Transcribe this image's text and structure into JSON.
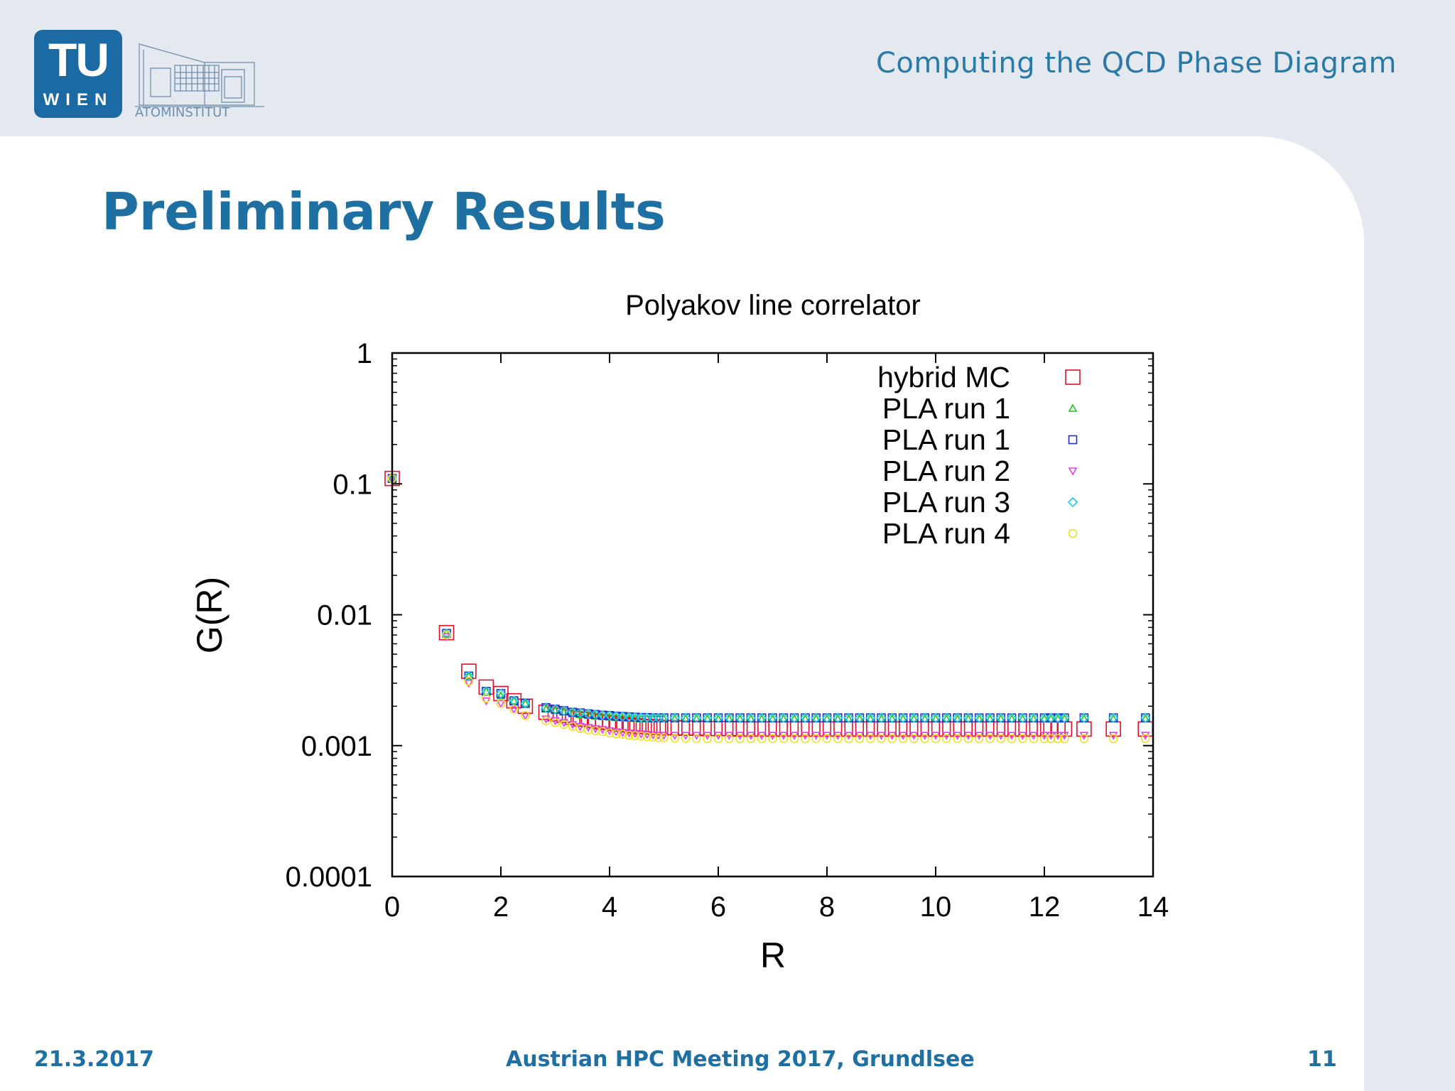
{
  "header": {
    "logo_primary": "TU",
    "logo_secondary": "WIEN",
    "logo_institute": "ATOMINSTITUT",
    "deck_title": "Computing the QCD Phase Diagram"
  },
  "slide": {
    "title": "Preliminary Results"
  },
  "footer": {
    "date": "21.3.2017",
    "event": "Austrian HPC Meeting 2017, Grundlsee",
    "page": "11"
  },
  "colors": {
    "header_bg": "#e3e9ee",
    "accent": "#1e6fa2",
    "deck_title": "#2a7aa8"
  },
  "chart_data": {
    "type": "scatter",
    "title": "Polyakov line correlator",
    "xlabel": "R",
    "ylabel": "G(R)",
    "xlim": [
      0,
      14
    ],
    "ylim": [
      0.0001,
      1
    ],
    "yscale": "log",
    "x_ticks": [
      0,
      2,
      4,
      6,
      8,
      10,
      12,
      14
    ],
    "y_ticks": [
      {
        "value": 0.0001,
        "label": "0.0001"
      },
      {
        "value": 0.001,
        "label": "0.001"
      },
      {
        "value": 0.01,
        "label": "0.01"
      },
      {
        "value": 0.1,
        "label": "0.1"
      },
      {
        "value": 1,
        "label": "1"
      }
    ],
    "legend_position": "top-right",
    "x": [
      0,
      1,
      1.41,
      1.73,
      2,
      2.24,
      2.45,
      2.83,
      3,
      3.16,
      3.32,
      3.46,
      3.61,
      3.74,
      3.87,
      4,
      4.12,
      4.24,
      4.36,
      4.47,
      4.58,
      4.69,
      4.8,
      4.9,
      5,
      5.2,
      5.4,
      5.6,
      5.8,
      6,
      6.2,
      6.4,
      6.6,
      6.8,
      7,
      7.2,
      7.4,
      7.6,
      7.8,
      8,
      8.2,
      8.4,
      8.6,
      8.8,
      9,
      9.2,
      9.4,
      9.6,
      9.8,
      10,
      10.2,
      10.4,
      10.6,
      10.8,
      11,
      11.2,
      11.4,
      11.6,
      11.8,
      12,
      12.12,
      12.25,
      12.37,
      12.73,
      13.27,
      13.86
    ],
    "series": [
      {
        "name": "hybrid MC",
        "marker": "square",
        "color": "#e0102a",
        "size": 1.0,
        "values": [
          0.11,
          0.0073,
          0.0037,
          0.0028,
          0.0025,
          0.0022,
          0.002,
          0.0018,
          0.00175,
          0.0017,
          0.00165,
          0.0016,
          0.00158,
          0.00155,
          0.00152,
          0.0015,
          0.00148,
          0.00146,
          0.00144,
          0.00142,
          0.0014,
          0.0014,
          0.00139,
          0.00138,
          0.00137,
          0.00137,
          0.00136,
          0.00136,
          0.00135,
          0.00135,
          0.00135,
          0.00134,
          0.00134,
          0.00134,
          0.00134,
          0.00134,
          0.00134,
          0.00134,
          0.00134,
          0.00134,
          0.00134,
          0.00134,
          0.00134,
          0.00134,
          0.00134,
          0.00134,
          0.00134,
          0.00134,
          0.00134,
          0.00134,
          0.00134,
          0.00134,
          0.00134,
          0.00134,
          0.00134,
          0.00134,
          0.00134,
          0.00134,
          0.00134,
          0.00134,
          0.00134,
          0.00134,
          0.00134,
          0.00134,
          0.00134,
          0.00134
        ]
      },
      {
        "name": "PLA run 1",
        "marker": "triangle-up",
        "color": "#22c422",
        "size": 0.5,
        "values": [
          0.11,
          0.0072,
          0.0034,
          0.0026,
          0.0024,
          0.0022,
          0.0021,
          0.0019,
          0.00185,
          0.0018,
          0.00175,
          0.00172,
          0.0017,
          0.00168,
          0.00166,
          0.00165,
          0.00164,
          0.00163,
          0.00162,
          0.00161,
          0.0016,
          0.0016,
          0.0016,
          0.0016,
          0.0016,
          0.0016,
          0.0016,
          0.0016,
          0.0016,
          0.0016,
          0.0016,
          0.0016,
          0.0016,
          0.0016,
          0.0016,
          0.0016,
          0.0016,
          0.0016,
          0.0016,
          0.0016,
          0.0016,
          0.0016,
          0.0016,
          0.0016,
          0.0016,
          0.0016,
          0.0016,
          0.0016,
          0.0016,
          0.0016,
          0.0016,
          0.0016,
          0.0016,
          0.0016,
          0.0016,
          0.0016,
          0.0016,
          0.0016,
          0.0016,
          0.0016,
          0.0016,
          0.0016,
          0.0016,
          0.0016,
          0.0016,
          0.0016
        ]
      },
      {
        "name": "PLA run 1",
        "marker": "square",
        "color": "#2030c8",
        "size": 0.55,
        "values": [
          0.11,
          0.0072,
          0.0034,
          0.0026,
          0.0025,
          0.0022,
          0.0021,
          0.00195,
          0.0019,
          0.00185,
          0.0018,
          0.00178,
          0.00175,
          0.00173,
          0.00171,
          0.0017,
          0.00168,
          0.00167,
          0.00166,
          0.00165,
          0.00164,
          0.00164,
          0.00163,
          0.00163,
          0.00163,
          0.00163,
          0.00163,
          0.00163,
          0.00163,
          0.00163,
          0.00163,
          0.00163,
          0.00163,
          0.00163,
          0.00163,
          0.00163,
          0.00163,
          0.00163,
          0.00163,
          0.00163,
          0.00163,
          0.00163,
          0.00163,
          0.00163,
          0.00163,
          0.00163,
          0.00163,
          0.00163,
          0.00163,
          0.00163,
          0.00163,
          0.00163,
          0.00163,
          0.00163,
          0.00163,
          0.00163,
          0.00163,
          0.00163,
          0.00163,
          0.00163,
          0.00163,
          0.00163,
          0.00163,
          0.00163,
          0.00163,
          0.00163
        ]
      },
      {
        "name": "PLA run 2",
        "marker": "triangle-down",
        "color": "#e040e0",
        "size": 0.5,
        "values": [
          0.11,
          0.0068,
          0.003,
          0.0022,
          0.0021,
          0.0019,
          0.0017,
          0.0016,
          0.00155,
          0.0015,
          0.00145,
          0.0014,
          0.00138,
          0.00135,
          0.00133,
          0.0013,
          0.00128,
          0.00126,
          0.00125,
          0.00124,
          0.00123,
          0.00122,
          0.00121,
          0.0012,
          0.0012,
          0.0012,
          0.0012,
          0.0012,
          0.0012,
          0.0012,
          0.0012,
          0.0012,
          0.0012,
          0.0012,
          0.0012,
          0.0012,
          0.0012,
          0.0012,
          0.0012,
          0.0012,
          0.0012,
          0.0012,
          0.0012,
          0.0012,
          0.0012,
          0.0012,
          0.0012,
          0.0012,
          0.0012,
          0.0012,
          0.0012,
          0.0012,
          0.0012,
          0.0012,
          0.0012,
          0.0012,
          0.0012,
          0.0012,
          0.0012,
          0.0012,
          0.0012,
          0.0012,
          0.0012,
          0.0012,
          0.0012,
          0.0012
        ]
      },
      {
        "name": "PLA run 3",
        "marker": "diamond",
        "color": "#20c8e0",
        "size": 0.6,
        "values": [
          0.11,
          0.0072,
          0.0034,
          0.0026,
          0.0025,
          0.0022,
          0.0021,
          0.00195,
          0.0019,
          0.00185,
          0.0018,
          0.00178,
          0.00175,
          0.00173,
          0.00171,
          0.0017,
          0.00168,
          0.00167,
          0.00166,
          0.00165,
          0.00164,
          0.00164,
          0.00163,
          0.00163,
          0.00163,
          0.00163,
          0.00163,
          0.00163,
          0.00163,
          0.00163,
          0.00163,
          0.00163,
          0.00163,
          0.00163,
          0.00163,
          0.00163,
          0.00163,
          0.00163,
          0.00163,
          0.00163,
          0.00163,
          0.00163,
          0.00163,
          0.00163,
          0.00163,
          0.00163,
          0.00163,
          0.00163,
          0.00163,
          0.00163,
          0.00163,
          0.00163,
          0.00163,
          0.00163,
          0.00163,
          0.00163,
          0.00163,
          0.00163,
          0.00163,
          0.00163,
          0.00163,
          0.00163,
          0.00163,
          0.00163,
          0.00163,
          0.00163
        ]
      },
      {
        "name": "PLA run 4",
        "marker": "circle",
        "color": "#f0e020",
        "size": 0.55,
        "values": [
          0.11,
          0.007,
          0.0031,
          0.0023,
          0.0021,
          0.0019,
          0.0017,
          0.00155,
          0.0015,
          0.00145,
          0.0014,
          0.00135,
          0.00132,
          0.0013,
          0.00128,
          0.00125,
          0.00123,
          0.00122,
          0.0012,
          0.00119,
          0.00118,
          0.00117,
          0.00116,
          0.00115,
          0.00115,
          0.00114,
          0.00114,
          0.00113,
          0.00113,
          0.00113,
          0.00113,
          0.00113,
          0.00113,
          0.00113,
          0.00113,
          0.00113,
          0.00113,
          0.00113,
          0.00113,
          0.00113,
          0.00113,
          0.00113,
          0.00113,
          0.00113,
          0.00113,
          0.00113,
          0.00113,
          0.00113,
          0.00113,
          0.00113,
          0.00113,
          0.00113,
          0.00113,
          0.00113,
          0.00113,
          0.00113,
          0.00113,
          0.00113,
          0.00113,
          0.00113,
          0.00113,
          0.00113,
          0.00113,
          0.00113,
          0.00113,
          0.00113
        ]
      }
    ]
  }
}
